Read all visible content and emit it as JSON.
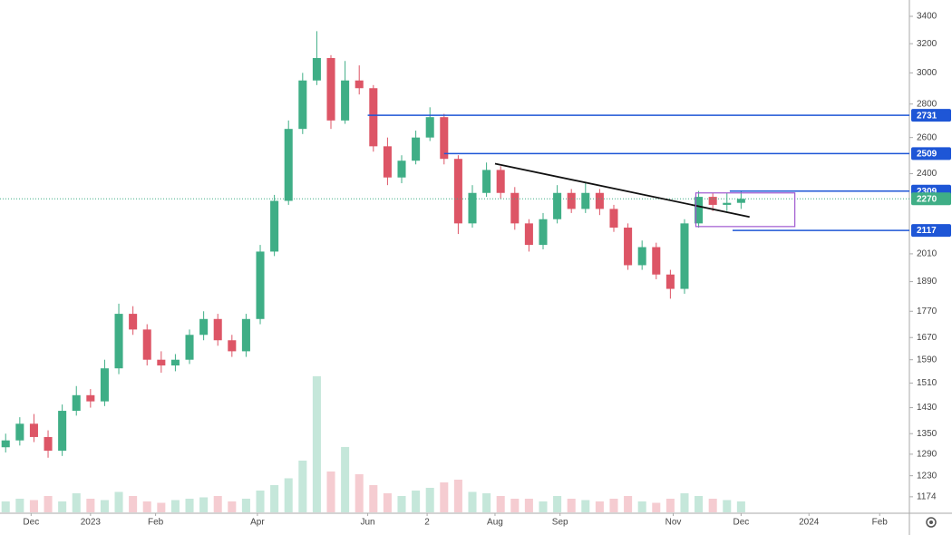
{
  "chart_data": {
    "type": "candlestick",
    "yscale": "log",
    "ylim": [
      1132,
      3525
    ],
    "yticks": [
      3400,
      3200,
      3000,
      2800,
      2600,
      2400,
      2010,
      1890,
      1770,
      1670,
      1590,
      1510,
      1430,
      1350,
      1290,
      1230,
      1174
    ],
    "xlim": [
      0,
      321.5
    ],
    "xticks": [
      {
        "value": 11,
        "label": "Dec"
      },
      {
        "value": 32,
        "label": "2023"
      },
      {
        "value": 55,
        "label": "Feb"
      },
      {
        "value": 91,
        "label": "Apr"
      },
      {
        "value": 130,
        "label": "Jun"
      },
      {
        "value": 151,
        "label": "2"
      },
      {
        "value": 175,
        "label": "Aug"
      },
      {
        "value": 198,
        "label": "Sep"
      },
      {
        "value": 238,
        "label": "Nov"
      },
      {
        "value": 262,
        "label": "Dec"
      },
      {
        "value": 286,
        "label": "2024"
      },
      {
        "value": 311,
        "label": "Feb"
      }
    ],
    "x": [
      2,
      7,
      12,
      17,
      22,
      27,
      32,
      37,
      42,
      47,
      52,
      57,
      62,
      67,
      72,
      77,
      82,
      87,
      92,
      97,
      102,
      107,
      112,
      117,
      122,
      127,
      132,
      137,
      142,
      147,
      152,
      157,
      162,
      167,
      172,
      177,
      182,
      187,
      192,
      197,
      202,
      207,
      212,
      217,
      222,
      227,
      232,
      237,
      242,
      247,
      252,
      257,
      262
    ],
    "open": [
      1310,
      1330,
      1380,
      1340,
      1300,
      1420,
      1470,
      1450,
      1560,
      1760,
      1700,
      1590,
      1570,
      1590,
      1680,
      1740,
      1660,
      1620,
      1740,
      2020,
      2260,
      2650,
      2950,
      3100,
      2700,
      2950,
      2900,
      2550,
      2380,
      2470,
      2600,
      2720,
      2480,
      2150,
      2300,
      2420,
      2300,
      2150,
      2050,
      2170,
      2300,
      2220,
      2300,
      2220,
      2130,
      1960,
      2040,
      1920,
      1860,
      2150,
      2280,
      2240,
      2250
    ],
    "high": [
      1350,
      1400,
      1410,
      1360,
      1440,
      1500,
      1490,
      1590,
      1800,
      1790,
      1720,
      1620,
      1610,
      1700,
      1770,
      1760,
      1680,
      1760,
      2050,
      2290,
      2700,
      3000,
      3290,
      3120,
      3080,
      3050,
      2920,
      2600,
      2500,
      2640,
      2780,
      2740,
      2500,
      2340,
      2460,
      2440,
      2330,
      2170,
      2200,
      2340,
      2320,
      2350,
      2320,
      2240,
      2150,
      2070,
      2060,
      1940,
      2170,
      2310,
      2300,
      2300,
      2310
    ],
    "low": [
      1295,
      1315,
      1325,
      1280,
      1285,
      1405,
      1430,
      1435,
      1540,
      1680,
      1570,
      1545,
      1550,
      1575,
      1660,
      1640,
      1600,
      1600,
      1720,
      2000,
      2240,
      2620,
      2920,
      2650,
      2680,
      2860,
      2520,
      2340,
      2350,
      2450,
      2580,
      2450,
      2100,
      2130,
      2280,
      2270,
      2120,
      2020,
      2030,
      2150,
      2200,
      2200,
      2190,
      2110,
      1940,
      1940,
      1900,
      1820,
      1840,
      2130,
      2210,
      2210,
      2220
    ],
    "close": [
      1330,
      1380,
      1340,
      1300,
      1420,
      1470,
      1450,
      1560,
      1760,
      1700,
      1590,
      1570,
      1590,
      1680,
      1740,
      1660,
      1620,
      1740,
      2020,
      2260,
      2650,
      2950,
      3100,
      2700,
      2950,
      2900,
      2550,
      2380,
      2470,
      2600,
      2720,
      2480,
      2150,
      2300,
      2420,
      2300,
      2150,
      2050,
      2170,
      2300,
      2220,
      2300,
      2220,
      2130,
      1960,
      2040,
      1920,
      1860,
      2150,
      2280,
      2240,
      2250,
      2270
    ],
    "volume": [
      8,
      10,
      9,
      12,
      8,
      14,
      10,
      9,
      15,
      12,
      8,
      7,
      9,
      10,
      11,
      12,
      8,
      10,
      16,
      20,
      25,
      38,
      100,
      30,
      48,
      28,
      20,
      14,
      12,
      16,
      18,
      22,
      24,
      15,
      14,
      12,
      10,
      10,
      8,
      12,
      10,
      9,
      8,
      10,
      12,
      8,
      7,
      10,
      14,
      12,
      10,
      9,
      8
    ],
    "volume_ylim": [
      0,
      377
    ],
    "up_color": "#3fae86",
    "down_color": "#dd5566",
    "last_price": 2270,
    "last_price_color": "#3fae86",
    "levels": [
      {
        "value": 2731,
        "x_start": 130
      },
      {
        "value": 2509,
        "x_start": 157
      },
      {
        "value": 2309,
        "x_start": 258
      },
      {
        "value": 2117,
        "x_start": 259
      }
    ],
    "level_color": "#1e56d6",
    "trendline": {
      "x": [
        175,
        265
      ],
      "y": [
        2454,
        2181
      ],
      "color": "#111111"
    },
    "box": {
      "x": [
        246,
        281
      ],
      "y": [
        2135,
        2300
      ],
      "color": "#a05ad0"
    }
  }
}
